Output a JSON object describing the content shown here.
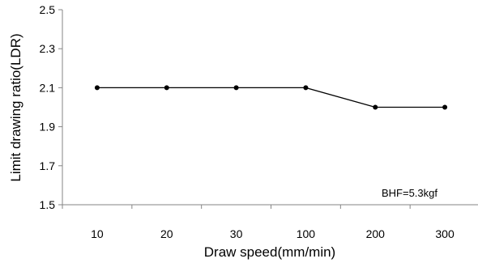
{
  "chart_data": {
    "type": "line",
    "title": "",
    "xlabel": "Draw speed(mm/min)",
    "ylabel": "Limit drawing ratio(LDR)",
    "categories": [
      "10",
      "20",
      "30",
      "100",
      "200",
      "300"
    ],
    "series": [
      {
        "values": [
          2.1,
          2.1,
          2.1,
          2.1,
          2.0,
          2.0
        ]
      }
    ],
    "ylim": [
      1.5,
      2.5
    ],
    "yticks": [
      "1.5",
      "1.7",
      "1.9",
      "2.1",
      "2.3",
      "2.5"
    ],
    "grid": false,
    "legend": "none",
    "annotation": "BHF=5.3kgf",
    "colors": {
      "line": "#000000",
      "marker": "#000000",
      "axis": "#868686"
    }
  }
}
